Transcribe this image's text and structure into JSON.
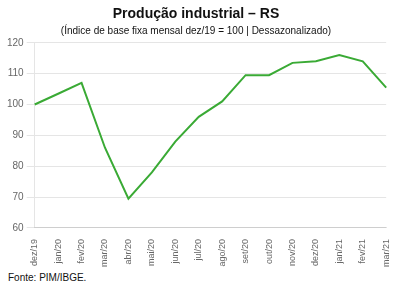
{
  "chart_data": {
    "type": "line",
    "title": "Produção industrial – RS",
    "subtitle": "(Índice de base fixa mensal dez/19 = 100 | Dessazonalizado)",
    "annotations": [
      "Fonte: PIM/IBGE."
    ],
    "categories": [
      "dez/19",
      "jan/20",
      "fev/20",
      "mar/20",
      "abr/20",
      "mai/20",
      "jun/20",
      "jul/20",
      "ago/20",
      "set/20",
      "out/20",
      "nov/20",
      "dez/20",
      "jan/21",
      "fev/21",
      "mar/21"
    ],
    "values": [
      100.0,
      103.5,
      107.0,
      86.0,
      69.5,
      78.0,
      88.0,
      96.0,
      101.0,
      109.5,
      109.5,
      113.5,
      114.0,
      116.0,
      114.0,
      105.5
    ],
    "color": "#3aaa35",
    "ylim": [
      60,
      120
    ],
    "yticks": [
      60,
      70,
      80,
      90,
      100,
      110,
      120
    ],
    "grid": "y"
  }
}
